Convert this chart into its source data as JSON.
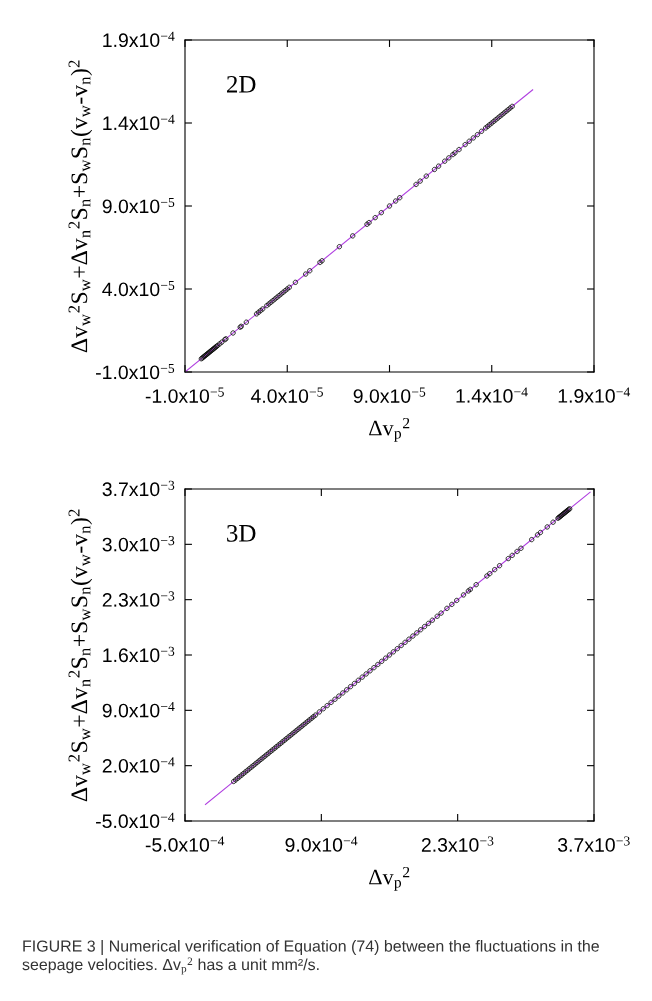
{
  "chart_data": [
    {
      "type": "scatter",
      "title": "2D",
      "xlabel": "Δv$_{p}$$^{2}$",
      "ylabel": "Δv$_{w}$$^{2}$S$_{w}$+Δv$_{n}$$^{2}$S$_{n}$+S$_{w}$S$_{n}$(v$_{w}$-v$_{n}$)$^{2}$",
      "xlim": [
        -1e-05,
        0.00019
      ],
      "ylim": [
        -1e-05,
        0.00019
      ],
      "xticks": [
        {
          "value": -1e-05,
          "label": "-1.0x10$^{−5}$"
        },
        {
          "value": 4e-05,
          "label": "4.0x10$^{−5}$"
        },
        {
          "value": 9e-05,
          "label": "9.0x10$^{−5}$"
        },
        {
          "value": 0.00014,
          "label": "1.4x10$^{−4}$"
        },
        {
          "value": 0.00019,
          "label": "1.9x10$^{−4}$"
        }
      ],
      "yticks": [
        {
          "value": -1e-05,
          "label": "-1.0x10$^{−5}$"
        },
        {
          "value": 4e-05,
          "label": "4.0x10$^{−5}$"
        },
        {
          "value": 9e-05,
          "label": "9.0x10$^{−5}$"
        },
        {
          "value": 0.00014,
          "label": "1.4x10$^{−4}$"
        },
        {
          "value": 0.00019,
          "label": "1.9x10$^{−4}$"
        }
      ],
      "grid": false,
      "legend": false,
      "series": [
        {
          "marker": "circle",
          "color": "#000000",
          "x": [
            -2e-06,
            -1.5e-06,
            -1e-06,
            -5e-07,
            0,
            5e-07,
            1e-06,
            1.5e-06,
            2e-06,
            2.5e-06,
            3e-06,
            3.5e-06,
            4e-06,
            4.5e-06,
            5e-06,
            5.5e-06,
            6e-06,
            7e-06,
            8e-06,
            9.5e-06,
            1e-05,
            1.35e-05,
            1.7e-05,
            1.75e-05,
            2e-05,
            2.5e-05,
            2.6e-05,
            2.7e-05,
            2.8e-05,
            3e-05,
            3.1e-05,
            3.2e-05,
            3.3e-05,
            3.4e-05,
            3.5e-05,
            3.6e-05,
            3.7e-05,
            3.8e-05,
            3.9e-05,
            4e-05,
            4.1e-05,
            4.4e-05,
            4.9e-05,
            5.1e-05,
            5.6e-05,
            5.7e-05,
            6.55e-05,
            7.2e-05,
            7.9e-05,
            8e-05,
            8.3e-05,
            8.6e-05,
            9e-05,
            9.3e-05,
            9.5e-05,
            0.000103,
            0.000105,
            0.000108,
            0.000112,
            0.000114,
            0.000117,
            0.000119,
            0.000121,
            0.000122,
            0.000124,
            0.000127,
            0.000129,
            0.000131,
            0.000133,
            0.000135,
            0.000137,
            0.000138,
            0.000139,
            0.00014,
            0.000141,
            0.000142,
            0.000143,
            0.000144,
            0.000145,
            0.000146,
            0.000147,
            0.000148,
            0.000149,
            0.00015
          ],
          "values": [
            -2e-06,
            -1.5e-06,
            -1e-06,
            -5e-07,
            0,
            5e-07,
            1e-06,
            1.5e-06,
            2e-06,
            2.5e-06,
            3e-06,
            3.5e-06,
            4e-06,
            4.5e-06,
            5e-06,
            5.5e-06,
            6e-06,
            7e-06,
            8e-06,
            9.5e-06,
            1e-05,
            1.35e-05,
            1.7e-05,
            1.75e-05,
            2e-05,
            2.5e-05,
            2.6e-05,
            2.7e-05,
            2.8e-05,
            3e-05,
            3.1e-05,
            3.2e-05,
            3.3e-05,
            3.4e-05,
            3.5e-05,
            3.6e-05,
            3.7e-05,
            3.8e-05,
            3.9e-05,
            4e-05,
            4.1e-05,
            4.4e-05,
            4.9e-05,
            5.1e-05,
            5.6e-05,
            5.7e-05,
            6.55e-05,
            7.2e-05,
            7.9e-05,
            8e-05,
            8.3e-05,
            8.6e-05,
            9e-05,
            9.3e-05,
            9.5e-05,
            0.000103,
            0.000105,
            0.000108,
            0.000112,
            0.000114,
            0.000117,
            0.000119,
            0.000121,
            0.000122,
            0.000124,
            0.000127,
            0.000129,
            0.000131,
            0.000133,
            0.000135,
            0.000137,
            0.000138,
            0.000139,
            0.00014,
            0.000141,
            0.000142,
            0.000143,
            0.000144,
            0.000145,
            0.000146,
            0.000147,
            0.000148,
            0.000149,
            0.00015
          ]
        },
        {
          "type": "line",
          "color": "#b040e0",
          "x": [
            -1e-05,
            0.00016
          ],
          "values": [
            -1e-05,
            0.00016
          ]
        }
      ]
    },
    {
      "type": "scatter",
      "title": "3D",
      "xlabel": "Δv$_{p}$$^{2}$",
      "ylabel": "Δv$_{w}$$^{2}$S$_{w}$+Δv$_{n}$$^{2}$S$_{n}$+S$_{w}$S$_{n}$(v$_{w}$-v$_{n}$)$^{2}$",
      "xlim": [
        -0.0005,
        0.0037
      ],
      "ylim": [
        -0.0005,
        0.0037
      ],
      "xticks": [
        {
          "value": -0.0005,
          "label": "-5.0x10$^{−4}$"
        },
        {
          "value": 0.0009,
          "label": "9.0x10$^{−4}$"
        },
        {
          "value": 0.0023,
          "label": "2.3x10$^{−3}$"
        },
        {
          "value": 0.0037,
          "label": "3.7x10$^{−3}$"
        }
      ],
      "yticks": [
        {
          "value": -0.0005,
          "label": "-5.0x10$^{−4}$"
        },
        {
          "value": 0.0002,
          "label": "2.0x10$^{−4}$"
        },
        {
          "value": 0.0009,
          "label": "9.0x10$^{−4}$"
        },
        {
          "value": 0.0016,
          "label": "1.6x10$^{−3}$"
        },
        {
          "value": 0.0023,
          "label": "2.3x10$^{−3}$"
        },
        {
          "value": 0.003,
          "label": "3.0x10$^{−3}$"
        },
        {
          "value": 0.0037,
          "label": "3.7x10$^{−3}$"
        }
      ],
      "grid": false,
      "legend": false,
      "annotations": [
        "FIGURE 3 | Numerical verification of Equation (74) between the fluctuations in the seepage velocities. Δv$_{p}$$^{2}$ has a unit mm²/s."
      ],
      "series": [
        {
          "marker": "circle",
          "color": "#000000",
          "x": [
            0,
            2e-05,
            4e-05,
            6e-05,
            8e-05,
            0.0001,
            0.00012,
            0.00014,
            0.00016,
            0.00018,
            0.0002,
            0.00022,
            0.00024,
            0.00026,
            0.00028,
            0.0003,
            0.00032,
            0.00034,
            0.00036,
            0.00038,
            0.0004,
            0.00042,
            0.00044,
            0.00046,
            0.00048,
            0.0005,
            0.00052,
            0.00054,
            0.00056,
            0.00058,
            0.0006,
            0.00062,
            0.00064,
            0.00066,
            0.00068,
            0.0007,
            0.00072,
            0.00074,
            0.00076,
            0.00078,
            0.0008,
            0.00082,
            0.00084,
            0.00088,
            0.00092,
            0.00096,
            0.001,
            0.00104,
            0.00108,
            0.00112,
            0.00116,
            0.0012,
            0.00124,
            0.00128,
            0.00132,
            0.00136,
            0.0014,
            0.00144,
            0.00148,
            0.00152,
            0.00156,
            0.0016,
            0.00164,
            0.00168,
            0.00172,
            0.00176,
            0.0018,
            0.00184,
            0.00188,
            0.00192,
            0.00196,
            0.002,
            0.00204,
            0.00209,
            0.00213,
            0.00219,
            0.00224,
            0.00229,
            0.00236,
            0.00241,
            0.00243,
            0.00249,
            0.0026,
            0.00263,
            0.00268,
            0.00273,
            0.00282,
            0.00286,
            0.00291,
            0.00295,
            0.00306,
            0.00312,
            0.00315,
            0.00322,
            0.00328,
            0.00333,
            0.00334,
            0.00335,
            0.00336,
            0.00337,
            0.00338,
            0.00339,
            0.0034,
            0.00341,
            0.00342,
            0.00343,
            0.00344,
            0.00345
          ],
          "values": [
            0,
            2e-05,
            4e-05,
            6e-05,
            8e-05,
            0.0001,
            0.00012,
            0.00014,
            0.00016,
            0.00018,
            0.0002,
            0.00022,
            0.00024,
            0.00026,
            0.00028,
            0.0003,
            0.00032,
            0.00034,
            0.00036,
            0.00038,
            0.0004,
            0.00042,
            0.00044,
            0.00046,
            0.00048,
            0.0005,
            0.00052,
            0.00054,
            0.00056,
            0.00058,
            0.0006,
            0.00062,
            0.00064,
            0.00066,
            0.00068,
            0.0007,
            0.00072,
            0.00074,
            0.00076,
            0.00078,
            0.0008,
            0.00082,
            0.00084,
            0.00088,
            0.00092,
            0.00096,
            0.001,
            0.00104,
            0.00108,
            0.00112,
            0.00116,
            0.0012,
            0.00124,
            0.00128,
            0.00132,
            0.00136,
            0.0014,
            0.00144,
            0.00148,
            0.00152,
            0.00156,
            0.0016,
            0.00164,
            0.00168,
            0.00172,
            0.00176,
            0.0018,
            0.00184,
            0.00188,
            0.00192,
            0.00196,
            0.002,
            0.00204,
            0.00209,
            0.00213,
            0.00219,
            0.00224,
            0.00229,
            0.00236,
            0.00241,
            0.00243,
            0.00249,
            0.0026,
            0.00263,
            0.00268,
            0.00273,
            0.00282,
            0.00286,
            0.00291,
            0.00295,
            0.00306,
            0.00312,
            0.00315,
            0.00322,
            0.00328,
            0.00333,
            0.00334,
            0.00335,
            0.00336,
            0.00337,
            0.00338,
            0.00339,
            0.0034,
            0.00341,
            0.00342,
            0.00343,
            0.00344,
            0.00345
          ]
        },
        {
          "type": "line",
          "color": "#b040e0",
          "x": [
            -0.00029,
            0.00366
          ],
          "values": [
            -0.00029,
            0.00366
          ]
        }
      ]
    }
  ]
}
